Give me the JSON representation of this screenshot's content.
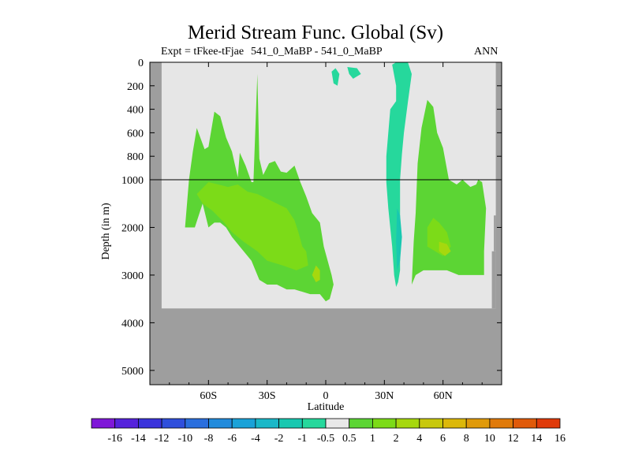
{
  "chart_data": {
    "type": "heatmap",
    "title": "Merid Stream Func. Global (Sv)",
    "subtitle_left": "Expt = tFkee-tFjae",
    "subtitle_center": "541_0_MaBP - 541_0_MaBP",
    "subtitle_right": "ANN",
    "xlabel": "Latitude",
    "ylabel": "Depth (in m)",
    "x_ticks": [
      "60S",
      "30S",
      "0",
      "30N",
      "60N"
    ],
    "x_tick_values": [
      -60,
      -30,
      0,
      30,
      60
    ],
    "xlim": [
      -90,
      90
    ],
    "y_ticks": [
      "0",
      "200",
      "400",
      "600",
      "800",
      "1000",
      "2000",
      "3000",
      "4000",
      "5000"
    ],
    "y_tick_values": [
      0,
      200,
      400,
      600,
      800,
      1000,
      2000,
      3000,
      4000,
      5000
    ],
    "ylim": [
      5300,
      0
    ],
    "y_scale": "piecewise linear: 0-1000 m upper panel, 1000-5300 m lower panel",
    "reference_line_depth": 1000,
    "colorbar": {
      "labels": [
        "-16",
        "-14",
        "-12",
        "-10",
        "-8",
        "-6",
        "-4",
        "-2",
        "-1",
        "-0.5",
        "0.5",
        "1",
        "2",
        "4",
        "6",
        "8",
        "10",
        "12",
        "14",
        "16"
      ],
      "colors": [
        "#7f17d8",
        "#5522dc",
        "#3a33dc",
        "#2f4fdc",
        "#2a6fde",
        "#218bdc",
        "#1aa2d8",
        "#1ab8c8",
        "#18c8b0",
        "#26d89c",
        "#e8e8e8",
        "#5cd534",
        "#7cdb18",
        "#a6d80e",
        "#c8c80c",
        "#dcb80a",
        "#e09a0a",
        "#e07a0a",
        "#e05a0a",
        "#e03a0a"
      ]
    },
    "regions": [
      {
        "label": "south-positive-cell",
        "value": 0.7,
        "points": [
          [
            -72,
            2000
          ],
          [
            -70,
            1000
          ],
          [
            -68,
            760
          ],
          [
            -66,
            560
          ],
          [
            -62,
            740
          ],
          [
            -60,
            720
          ],
          [
            -59,
            620
          ],
          [
            -57,
            420
          ],
          [
            -54,
            460
          ],
          [
            -51,
            640
          ],
          [
            -48,
            760
          ],
          [
            -45,
            980
          ],
          [
            -44,
            770
          ],
          [
            -41,
            880
          ],
          [
            -38,
            1050
          ],
          [
            -37,
            1050
          ],
          [
            -35,
            100
          ],
          [
            -34,
            820
          ],
          [
            -32,
            960
          ],
          [
            -29,
            860
          ],
          [
            -26,
            840
          ],
          [
            -23,
            930
          ],
          [
            -20,
            940
          ],
          [
            -16,
            880
          ],
          [
            -13,
            1050
          ],
          [
            -10,
            1350
          ],
          [
            -7,
            1700
          ],
          [
            -3,
            1900
          ],
          [
            -1,
            2400
          ],
          [
            3,
            3000
          ],
          [
            4,
            3200
          ],
          [
            2,
            3500
          ],
          [
            0,
            3550
          ],
          [
            -3,
            3400
          ],
          [
            -8,
            3400
          ],
          [
            -16,
            3300
          ],
          [
            -20,
            3300
          ],
          [
            -25,
            3200
          ],
          [
            -30,
            3200
          ],
          [
            -34,
            3100
          ],
          [
            -38,
            2700
          ],
          [
            -44,
            2400
          ],
          [
            -48,
            2200
          ],
          [
            -51,
            2000
          ],
          [
            -54,
            1900
          ],
          [
            -57,
            1900
          ],
          [
            -60,
            2000
          ],
          [
            -63,
            1500
          ],
          [
            -67,
            2000
          ]
        ]
      },
      {
        "label": "south-core-1",
        "value": 1.5,
        "points": [
          [
            -66,
            1300
          ],
          [
            -60,
            1050
          ],
          [
            -55,
            1100
          ],
          [
            -50,
            1150
          ],
          [
            -45,
            1100
          ],
          [
            -40,
            1250
          ],
          [
            -35,
            1300
          ],
          [
            -30,
            1400
          ],
          [
            -25,
            1500
          ],
          [
            -20,
            1600
          ],
          [
            -16,
            1850
          ],
          [
            -14,
            2100
          ],
          [
            -12,
            2400
          ],
          [
            -10,
            2500
          ],
          [
            -9,
            2800
          ],
          [
            -15,
            2900
          ],
          [
            -22,
            2800
          ],
          [
            -30,
            2700
          ],
          [
            -35,
            2500
          ],
          [
            -42,
            2300
          ],
          [
            -48,
            2100
          ],
          [
            -52,
            1900
          ],
          [
            -58,
            1650
          ],
          [
            -63,
            1500
          ]
        ]
      },
      {
        "label": "south-core-2",
        "value": 2.5,
        "points": [
          [
            -5,
            2800
          ],
          [
            -3,
            2900
          ],
          [
            -3,
            3100
          ],
          [
            -5,
            3150
          ],
          [
            -7,
            3000
          ]
        ]
      },
      {
        "label": "north-positive-cell",
        "value": 0.7,
        "points": [
          [
            44,
            3200
          ],
          [
            45,
            2300
          ],
          [
            46,
            1700
          ],
          [
            47,
            860
          ],
          [
            49,
            560
          ],
          [
            52,
            320
          ],
          [
            55,
            380
          ],
          [
            57,
            600
          ],
          [
            60,
            730
          ],
          [
            63,
            1000
          ],
          [
            67,
            1100
          ],
          [
            70,
            1000
          ],
          [
            74,
            1150
          ],
          [
            77,
            1100
          ],
          [
            78,
            1000
          ],
          [
            80,
            1050
          ],
          [
            82,
            1600
          ],
          [
            81,
            2500
          ],
          [
            81,
            3000
          ],
          [
            78,
            3000
          ],
          [
            74,
            3000
          ],
          [
            68,
            3000
          ],
          [
            62,
            2900
          ],
          [
            58,
            2900
          ],
          [
            54,
            2900
          ],
          [
            50,
            2900
          ],
          [
            46,
            3000
          ]
        ]
      },
      {
        "label": "north-core-1",
        "value": 1.5,
        "points": [
          [
            52,
            2000
          ],
          [
            55,
            1800
          ],
          [
            58,
            1900
          ],
          [
            62,
            2100
          ],
          [
            64,
            2400
          ],
          [
            60,
            2600
          ],
          [
            56,
            2500
          ],
          [
            52,
            2400
          ]
        ]
      },
      {
        "label": "north-core-2",
        "value": 2.5,
        "points": [
          [
            58,
            2300
          ],
          [
            62,
            2350
          ],
          [
            64,
            2500
          ],
          [
            61,
            2600
          ],
          [
            58,
            2500
          ]
        ]
      },
      {
        "label": "north-negative-cell",
        "value": -0.7,
        "points": [
          [
            34,
            20
          ],
          [
            36,
            0
          ],
          [
            42,
            0
          ],
          [
            44,
            100
          ],
          [
            42,
            340
          ],
          [
            40,
            600
          ],
          [
            39,
            780
          ],
          [
            38,
            1000
          ],
          [
            38,
            1200
          ],
          [
            38,
            2200
          ],
          [
            38,
            2900
          ],
          [
            37,
            3150
          ],
          [
            36,
            3250
          ],
          [
            35,
            3000
          ],
          [
            34,
            2400
          ],
          [
            32,
            1600
          ],
          [
            31,
            1050
          ],
          [
            31,
            800
          ],
          [
            32,
            600
          ],
          [
            33,
            400
          ],
          [
            36,
            330
          ],
          [
            36,
            200
          ]
        ]
      },
      {
        "label": "north-negative-core",
        "value": -1.5,
        "points": [
          [
            36.5,
            1600
          ],
          [
            38,
            1750
          ],
          [
            39,
            2200
          ],
          [
            38,
            2700
          ],
          [
            36.5,
            2900
          ],
          [
            36,
            2300
          ]
        ]
      },
      {
        "label": "equatorial-blob-1",
        "value": -0.7,
        "points": [
          [
            3,
            80
          ],
          [
            5,
            50
          ],
          [
            7,
            100
          ],
          [
            6,
            200
          ],
          [
            4,
            180
          ]
        ]
      },
      {
        "label": "equatorial-blob-2",
        "value": -0.7,
        "points": [
          [
            11,
            40
          ],
          [
            16,
            50
          ],
          [
            18,
            100
          ],
          [
            14,
            140
          ],
          [
            12,
            100
          ]
        ]
      }
    ],
    "masks": [
      {
        "label": "land-bottom",
        "points": [
          [
            -90,
            3700
          ],
          [
            90,
            3700
          ],
          [
            90,
            5300
          ],
          [
            -90,
            5300
          ]
        ]
      },
      {
        "label": "land-west",
        "points": [
          [
            -90,
            0
          ],
          [
            -84,
            0
          ],
          [
            -84,
            5300
          ],
          [
            -90,
            5300
          ]
        ]
      },
      {
        "label": "land-east",
        "points": [
          [
            87,
            0
          ],
          [
            90,
            0
          ],
          [
            90,
            5300
          ],
          [
            87,
            5300
          ]
        ]
      },
      {
        "label": "land-east-step",
        "points": [
          [
            85,
            2500
          ],
          [
            87,
            2500
          ],
          [
            87,
            3700
          ],
          [
            85,
            3700
          ]
        ]
      },
      {
        "label": "land-east-step-2",
        "points": [
          [
            86,
            1750
          ],
          [
            87,
            1750
          ],
          [
            87,
            2500
          ],
          [
            86,
            2500
          ]
        ]
      }
    ]
  }
}
